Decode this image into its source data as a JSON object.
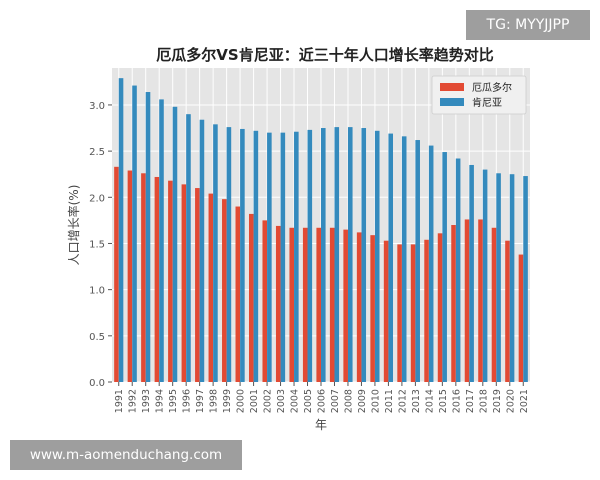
{
  "watermarks": {
    "top_right": "TG: MYYJJPP",
    "bottom_left": "www.m-aomenduchang.com"
  },
  "colors": {
    "ecuador": "#e24a33",
    "kenya": "#348abd",
    "plot_bg": "#e5e5e5",
    "grid": "#ffffff"
  },
  "chart_data": {
    "type": "bar",
    "title": "厄瓜多尔VS肯尼亚：近三十年人口增长率趋势对比",
    "xlabel": "年",
    "ylabel": "人口增长率(%)",
    "ylim": [
      0,
      3.4
    ],
    "yticks": [
      0.0,
      0.5,
      1.0,
      1.5,
      2.0,
      2.5,
      3.0
    ],
    "ytick_labels": [
      "0.0",
      "0.5",
      "1.0",
      "1.5",
      "2.0",
      "2.5",
      "3.0"
    ],
    "grid": true,
    "legend_position": "top-right",
    "categories": [
      "1991",
      "1992",
      "1993",
      "1994",
      "1995",
      "1996",
      "1997",
      "1998",
      "1999",
      "2000",
      "2001",
      "2002",
      "2003",
      "2004",
      "2005",
      "2006",
      "2007",
      "2008",
      "2009",
      "2010",
      "2011",
      "2012",
      "2013",
      "2014",
      "2015",
      "2016",
      "2017",
      "2018",
      "2019",
      "2020",
      "2021"
    ],
    "series": [
      {
        "name": "厄瓜多尔",
        "color": "#e24a33",
        "values": [
          2.33,
          2.29,
          2.26,
          2.22,
          2.18,
          2.14,
          2.1,
          2.04,
          1.98,
          1.9,
          1.82,
          1.75,
          1.69,
          1.67,
          1.67,
          1.67,
          1.67,
          1.65,
          1.62,
          1.59,
          1.53,
          1.49,
          1.49,
          1.54,
          1.61,
          1.7,
          1.76,
          1.76,
          1.67,
          1.53,
          1.38
        ]
      },
      {
        "name": "肯尼亚",
        "color": "#348abd",
        "values": [
          3.29,
          3.21,
          3.14,
          3.06,
          2.98,
          2.9,
          2.84,
          2.79,
          2.76,
          2.74,
          2.72,
          2.7,
          2.7,
          2.71,
          2.73,
          2.75,
          2.76,
          2.76,
          2.75,
          2.72,
          2.69,
          2.66,
          2.62,
          2.56,
          2.49,
          2.42,
          2.35,
          2.3,
          2.26,
          2.25,
          2.23
        ]
      }
    ]
  }
}
